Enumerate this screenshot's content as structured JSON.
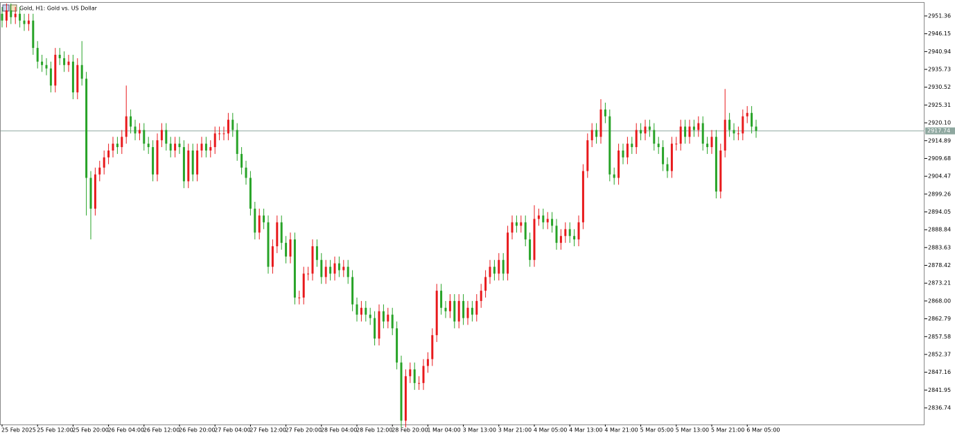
{
  "chart_data": {
    "type": "candlestick",
    "title": "Gold, H1:  Gold vs. US Dollar",
    "up_color": "#e8191c",
    "down_color": "#27a327",
    "categories": [
      "25 Feb 2025",
      null,
      null,
      null,
      null,
      null,
      null,
      null,
      "25 Feb 12:00",
      null,
      null,
      null,
      null,
      null,
      null,
      null,
      "25 Feb 20:00",
      null,
      null,
      null,
      null,
      null,
      null,
      null,
      "26 Feb 04:00",
      null,
      null,
      null,
      null,
      null,
      null,
      null,
      "26 Feb 12:00",
      null,
      null,
      null,
      null,
      null,
      null,
      null,
      "26 Feb 20:00",
      null,
      null,
      null,
      null,
      null,
      null,
      null,
      "27 Feb 04:00",
      null,
      null,
      null,
      null,
      null,
      null,
      null,
      "27 Feb 12:00",
      null,
      null,
      null,
      null,
      null,
      null,
      null,
      "27 Feb 20:00",
      null,
      null,
      null,
      null,
      null,
      null,
      null,
      "28 Feb 04:00",
      null,
      null,
      null,
      null,
      null,
      null,
      null,
      "28 Feb 12:00",
      null,
      null,
      null,
      null,
      null,
      null,
      null,
      "28 Feb 20:00",
      null,
      null,
      null,
      null,
      null,
      null,
      null,
      "1 Mar 04:00",
      null,
      null,
      null,
      null,
      null,
      null,
      null,
      "3 Mar 13:00",
      null,
      null,
      null,
      null,
      null,
      null,
      null,
      "3 Mar 21:00",
      null,
      null,
      null,
      null,
      null,
      null,
      null,
      "4 Mar 05:00",
      null,
      null,
      null,
      null,
      null,
      null,
      null,
      "4 Mar 13:00",
      null,
      null,
      null,
      null,
      null,
      null,
      null,
      "4 Mar 21:00",
      null,
      null,
      null,
      null,
      null,
      null,
      null,
      "5 Mar 05:00",
      null,
      null,
      null,
      null,
      null,
      null,
      null,
      "5 Mar 13:00",
      null,
      null,
      null,
      null,
      null,
      null,
      null,
      "5 Mar 21:00",
      null,
      null,
      null,
      null,
      null,
      null,
      null,
      "6 Mar 05:00",
      null,
      null
    ],
    "open": [
      2952,
      2950,
      2953,
      2951,
      2952,
      2950,
      2949,
      2950,
      2942,
      2938,
      2937,
      2936,
      2931,
      2940,
      2939,
      2937,
      2938,
      2929,
      2937,
      2933,
      2904,
      2895,
      2905,
      2907,
      2910,
      2912,
      2914,
      2913,
      2916,
      2922,
      2919,
      2917,
      2918,
      2914,
      2913,
      2905,
      2915,
      2918,
      2914,
      2912,
      2914,
      2913,
      2903,
      2912,
      2905,
      2912,
      2914,
      2912,
      2913,
      2917,
      2917,
      2917,
      2921,
      2918,
      2911,
      2907,
      2904,
      2895,
      2888,
      2893,
      2891,
      2878,
      2884,
      2891,
      2885,
      2881,
      2886,
      2869,
      2869,
      2876,
      2876,
      2884,
      2880,
      2875,
      2878,
      2876,
      2879,
      2877,
      2878,
      2875,
      2867,
      2864,
      2866,
      2864,
      2863,
      2857,
      2865,
      2862,
      2864,
      2860,
      2850,
      2833,
      2846,
      2848,
      2844,
      2844,
      2849,
      2851,
      2858,
      2871,
      2866,
      2865,
      2868,
      2862,
      2868,
      2863,
      2866,
      2864,
      2868,
      2871,
      2875,
      2878,
      2876,
      2880,
      2876,
      2888,
      2891,
      2890,
      2891,
      2886,
      2880,
      2892,
      2893,
      2891,
      2892,
      2890,
      2885,
      2887,
      2889,
      2887,
      2886,
      2891,
      2906,
      2915,
      2918,
      2916,
      2924,
      2922,
      2905,
      2904,
      2912,
      2910,
      2914,
      2913,
      2918,
      2917,
      2919,
      2918,
      2914,
      2913,
      2908,
      2906,
      2914,
      2914,
      2919,
      2916,
      2919,
      2918,
      2920,
      2914,
      2913,
      2916,
      2900,
      2912,
      2921,
      2918,
      2917,
      2917,
      2922,
      2923,
      2919
    ],
    "high": [
      2954,
      2955,
      2955,
      2954,
      2954,
      2952,
      2952,
      2952,
      2944,
      2940,
      2939,
      2938,
      2942,
      2942,
      2941,
      2940,
      2940,
      2939,
      2944,
      2935,
      2906,
      2907,
      2909,
      2912,
      2914,
      2916,
      2916,
      2918,
      2931,
      2924,
      2921,
      2920,
      2920,
      2916,
      2915,
      2917,
      2920,
      2920,
      2916,
      2916,
      2916,
      2915,
      2914,
      2914,
      2914,
      2916,
      2916,
      2915,
      2919,
      2919,
      2919,
      2923,
      2923,
      2920,
      2913,
      2909,
      2906,
      2897,
      2895,
      2895,
      2893,
      2886,
      2893,
      2893,
      2887,
      2888,
      2888,
      2871,
      2878,
      2878,
      2886,
      2886,
      2882,
      2880,
      2880,
      2881,
      2881,
      2880,
      2880,
      2877,
      2869,
      2868,
      2868,
      2866,
      2865,
      2867,
      2867,
      2866,
      2866,
      2862,
      2852,
      2848,
      2850,
      2850,
      2846,
      2851,
      2853,
      2860,
      2873,
      2873,
      2868,
      2870,
      2870,
      2870,
      2870,
      2868,
      2868,
      2870,
      2873,
      2877,
      2880,
      2880,
      2882,
      2882,
      2890,
      2893,
      2893,
      2893,
      2893,
      2888,
      2896,
      2895,
      2895,
      2894,
      2894,
      2892,
      2889,
      2891,
      2891,
      2889,
      2893,
      2908,
      2917,
      2920,
      2920,
      2927,
      2926,
      2924,
      2907,
      2914,
      2914,
      2916,
      2916,
      2920,
      2920,
      2921,
      2921,
      2920,
      2916,
      2915,
      2910,
      2916,
      2916,
      2921,
      2921,
      2921,
      2921,
      2922,
      2922,
      2916,
      2918,
      2918,
      2914,
      2930,
      2923,
      2920,
      2919,
      2924,
      2925,
      2925,
      2921
    ],
    "low": [
      2948,
      2948,
      2949,
      2949,
      2948,
      2947,
      2947,
      2940,
      2936,
      2935,
      2934,
      2929,
      2929,
      2937,
      2935,
      2935,
      2927,
      2927,
      2931,
      2893,
      2886,
      2893,
      2903,
      2905,
      2908,
      2910,
      2911,
      2911,
      2914,
      2917,
      2915,
      2915,
      2912,
      2911,
      2903,
      2903,
      2913,
      2912,
      2910,
      2910,
      2911,
      2901,
      2901,
      2903,
      2903,
      2910,
      2910,
      2910,
      2911,
      2915,
      2915,
      2915,
      2916,
      2909,
      2905,
      2902,
      2893,
      2886,
      2886,
      2889,
      2876,
      2876,
      2882,
      2883,
      2879,
      2879,
      2867,
      2867,
      2867,
      2874,
      2874,
      2878,
      2873,
      2873,
      2874,
      2874,
      2875,
      2875,
      2873,
      2865,
      2862,
      2862,
      2862,
      2861,
      2855,
      2855,
      2860,
      2860,
      2858,
      2848,
      2831,
      2831,
      2844,
      2842,
      2842,
      2842,
      2847,
      2849,
      2856,
      2864,
      2863,
      2863,
      2860,
      2860,
      2861,
      2861,
      2862,
      2862,
      2866,
      2869,
      2873,
      2874,
      2874,
      2874,
      2874,
      2886,
      2888,
      2888,
      2884,
      2878,
      2878,
      2890,
      2889,
      2889,
      2888,
      2883,
      2883,
      2885,
      2885,
      2884,
      2884,
      2889,
      2904,
      2913,
      2914,
      2914,
      2920,
      2903,
      2902,
      2902,
      2908,
      2908,
      2911,
      2911,
      2915,
      2915,
      2916,
      2912,
      2911,
      2906,
      2904,
      2904,
      2912,
      2912,
      2914,
      2914,
      2916,
      2916,
      2912,
      2911,
      2911,
      2898,
      2898,
      2910,
      2916,
      2915,
      2915,
      2915,
      2920,
      2917,
      2915.74
    ],
    "close": [
      2950,
      2953,
      2951,
      2952,
      2950,
      2949,
      2950,
      2942,
      2938,
      2937,
      2936,
      2931,
      2940,
      2939,
      2937,
      2938,
      2929,
      2937,
      2933,
      2904,
      2895,
      2905,
      2907,
      2910,
      2912,
      2914,
      2913,
      2916,
      2922,
      2919,
      2917,
      2918,
      2914,
      2913,
      2905,
      2915,
      2918,
      2914,
      2912,
      2914,
      2913,
      2903,
      2912,
      2905,
      2912,
      2914,
      2912,
      2913,
      2917,
      2917,
      2917,
      2921,
      2918,
      2911,
      2907,
      2904,
      2895,
      2888,
      2893,
      2891,
      2878,
      2884,
      2891,
      2885,
      2881,
      2886,
      2869,
      2869,
      2876,
      2876,
      2884,
      2880,
      2875,
      2878,
      2876,
      2879,
      2877,
      2878,
      2875,
      2867,
      2864,
      2866,
      2864,
      2863,
      2857,
      2865,
      2862,
      2864,
      2860,
      2850,
      2833,
      2846,
      2848,
      2844,
      2844,
      2849,
      2851,
      2858,
      2871,
      2866,
      2865,
      2868,
      2862,
      2868,
      2863,
      2866,
      2864,
      2868,
      2871,
      2875,
      2878,
      2876,
      2880,
      2876,
      2888,
      2891,
      2890,
      2891,
      2886,
      2880,
      2892,
      2893,
      2891,
      2892,
      2890,
      2885,
      2887,
      2889,
      2887,
      2886,
      2891,
      2906,
      2915,
      2918,
      2916,
      2924,
      2922,
      2905,
      2904,
      2912,
      2910,
      2914,
      2913,
      2918,
      2917,
      2919,
      2918,
      2914,
      2913,
      2908,
      2906,
      2914,
      2914,
      2919,
      2916,
      2919,
      2918,
      2920,
      2914,
      2913,
      2916,
      2900,
      2912,
      2921,
      2918,
      2917,
      2917,
      2922,
      2923,
      2919,
      2917.74
    ],
    "current_price": {
      "value": 2917.74,
      "label": "2917.74"
    },
    "ylim": [
      2831.87,
      2955.21
    ],
    "yticks": [
      2951.36,
      2946.15,
      2940.94,
      2935.73,
      2930.52,
      2925.31,
      {
        "value": 2920.1,
        "label": "2920.10"
      },
      2914.89,
      2909.68,
      2904.47,
      2899.26,
      2894.05,
      2888.84,
      2883.63,
      2878.42,
      2873.21,
      {
        "value": 2868,
        "label": "2868.00"
      },
      2862.79,
      2857.58,
      2852.37,
      2847.16,
      2841.95,
      2836.74
    ]
  }
}
